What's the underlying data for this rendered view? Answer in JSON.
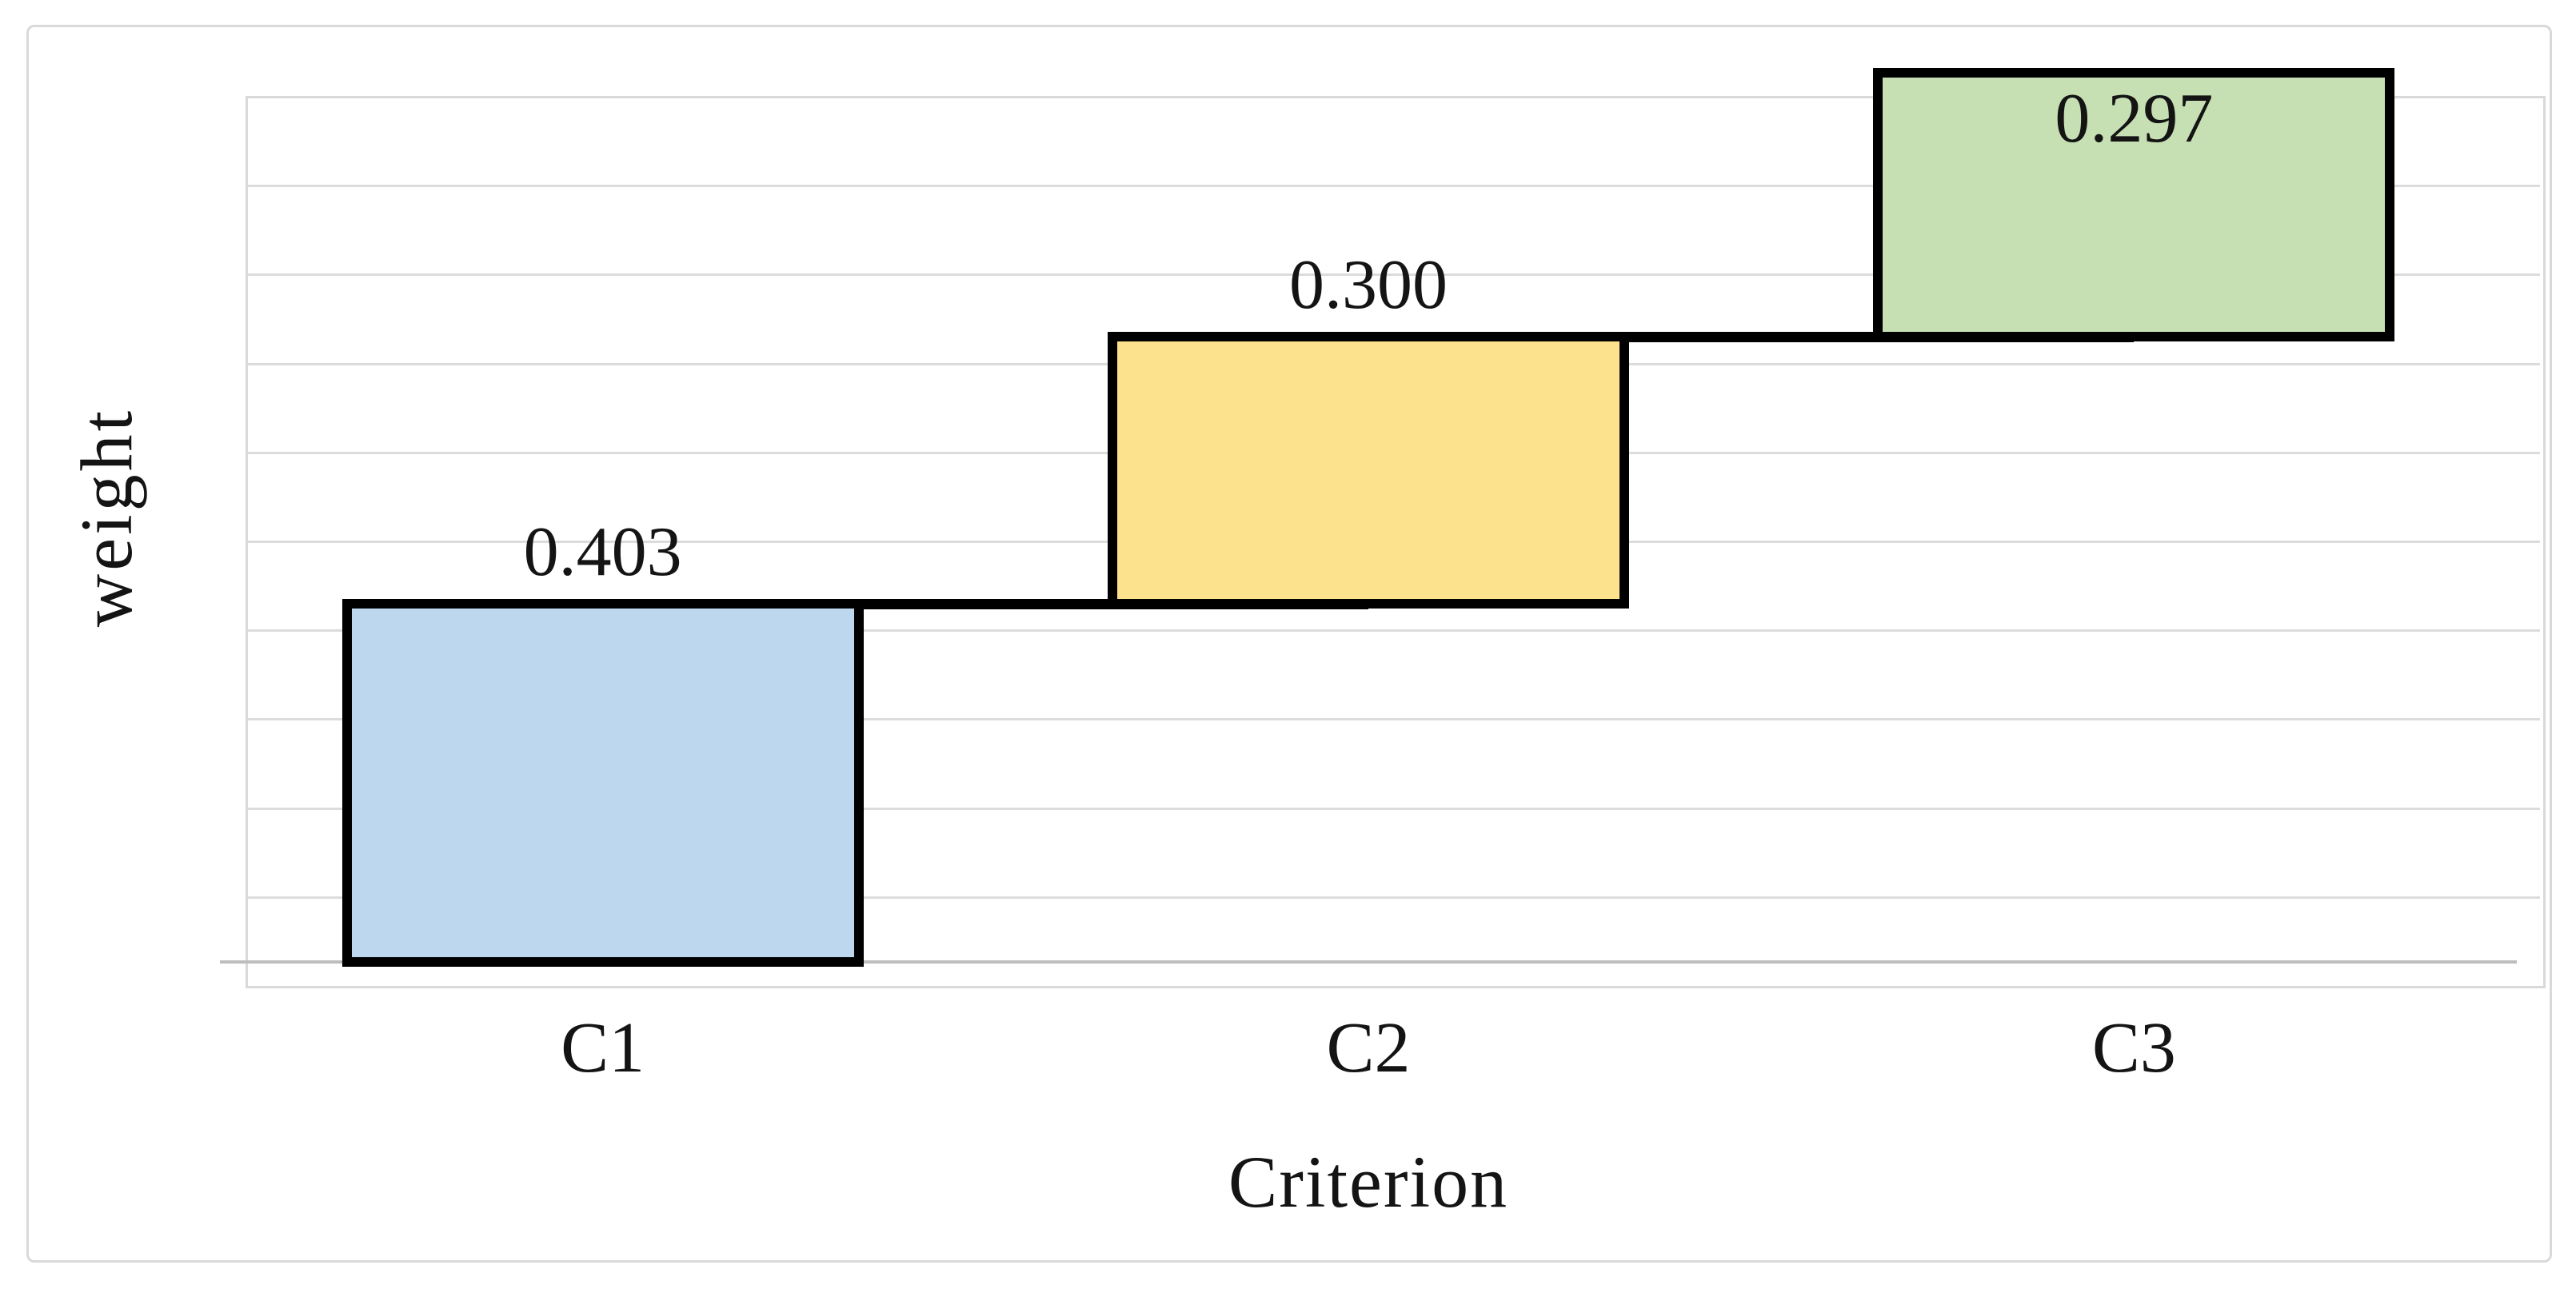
{
  "figure": {
    "background_color": "#ffffff",
    "border_color": "#d9d9d9"
  },
  "chart_data": {
    "type": "bar",
    "subtype": "waterfall",
    "title": "",
    "xlabel": "Criterion",
    "ylabel": "weight",
    "ylim": [
      0,
      1.0
    ],
    "gridline_step": 0.1,
    "grid": true,
    "legend": false,
    "y_tick_labels_visible": false,
    "categories": [
      "C1",
      "C2",
      "C3"
    ],
    "values": [
      0.403,
      0.3,
      0.297
    ],
    "points": [
      {
        "category": "C1",
        "value": 0.403,
        "start": 0.0,
        "end": 0.403,
        "label_text": "0.403",
        "label_position": "above-bar",
        "fill": "#bdd7ee"
      },
      {
        "category": "C2",
        "value": 0.3,
        "start": 0.403,
        "end": 0.703,
        "label_text": "0.300",
        "label_position": "above-bar",
        "fill": "#fce28c"
      },
      {
        "category": "C3",
        "value": 0.297,
        "start": 0.703,
        "end": 1.0,
        "label_text": "0.297",
        "label_position": "inside-top",
        "fill": "#c6e0b4"
      }
    ],
    "bar_border_color": "#000000",
    "connector_color": "#000000",
    "gridline_color": "#dcdcdc",
    "axis_line_color": "#bdbdbd",
    "label_color": "#141414"
  }
}
